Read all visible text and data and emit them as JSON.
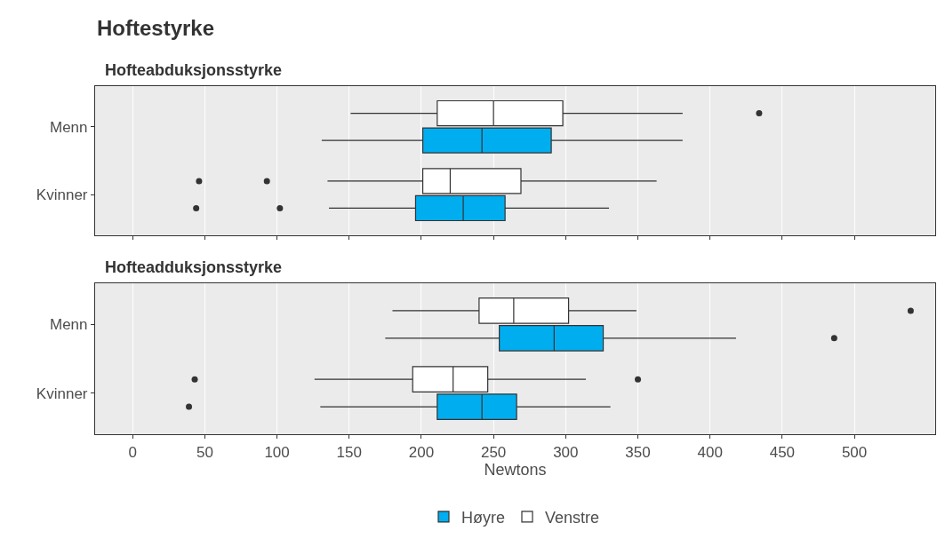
{
  "chart_data": [
    {
      "type": "box",
      "title": "Hoftestyrke",
      "subtitle": "Hofteabduksjonsstyrke",
      "orientation": "horizontal",
      "categories": [
        "Menn",
        "Kvinner"
      ],
      "xlim": [
        -26,
        556
      ],
      "xticks": [
        0,
        50,
        100,
        150,
        200,
        250,
        300,
        350,
        400,
        450,
        500
      ],
      "grid": "x",
      "tick_labels": "y",
      "series": [
        {
          "color": "#00aeef",
          "boxes": [
            {
              "low": 131,
              "q1": 201,
              "median": 242,
              "q3": 290,
              "high": 381
            },
            {
              "low": 136,
              "q1": 196,
              "median": 229,
              "q3": 258,
              "high": 330,
              "outliers": [
                44,
                102
              ]
            }
          ]
        },
        {
          "color": "#ffffff",
          "boxes": [
            {
              "low": 151,
              "q1": 211,
              "median": 250,
              "q3": 298,
              "high": 381,
              "outliers": [
                434
              ]
            },
            {
              "low": 135,
              "q1": 201,
              "median": 220,
              "q3": 269,
              "high": 363,
              "outliers": [
                46,
                93
              ]
            }
          ]
        }
      ]
    },
    {
      "type": "box",
      "subtitle": "Hofteadduksjonsstyrke",
      "xlabel": "Newtons",
      "orientation": "horizontal",
      "categories": [
        "Menn",
        "Kvinner"
      ],
      "xlim": [
        -26,
        556
      ],
      "xticks": [
        0,
        50,
        100,
        150,
        200,
        250,
        300,
        350,
        400,
        450,
        500
      ],
      "grid": "x",
      "legend": "bottom",
      "series": [
        {
          "name": "Høyre",
          "color": "#00aeef",
          "boxes": [
            {
              "low": 175,
              "q1": 254,
              "median": 292,
              "q3": 326,
              "high": 418,
              "outliers": [
                486
              ]
            },
            {
              "low": 130,
              "q1": 211,
              "median": 242,
              "q3": 266,
              "high": 331,
              "outliers": [
                39
              ]
            }
          ]
        },
        {
          "name": "Venstre",
          "color": "#ffffff",
          "boxes": [
            {
              "low": 180,
              "q1": 240,
              "median": 264,
              "q3": 302,
              "high": 349,
              "outliers": [
                539
              ]
            },
            {
              "low": 126,
              "q1": 194,
              "median": 222,
              "q3": 246,
              "high": 314,
              "outliers": [
                43,
                350
              ]
            }
          ]
        }
      ]
    }
  ]
}
